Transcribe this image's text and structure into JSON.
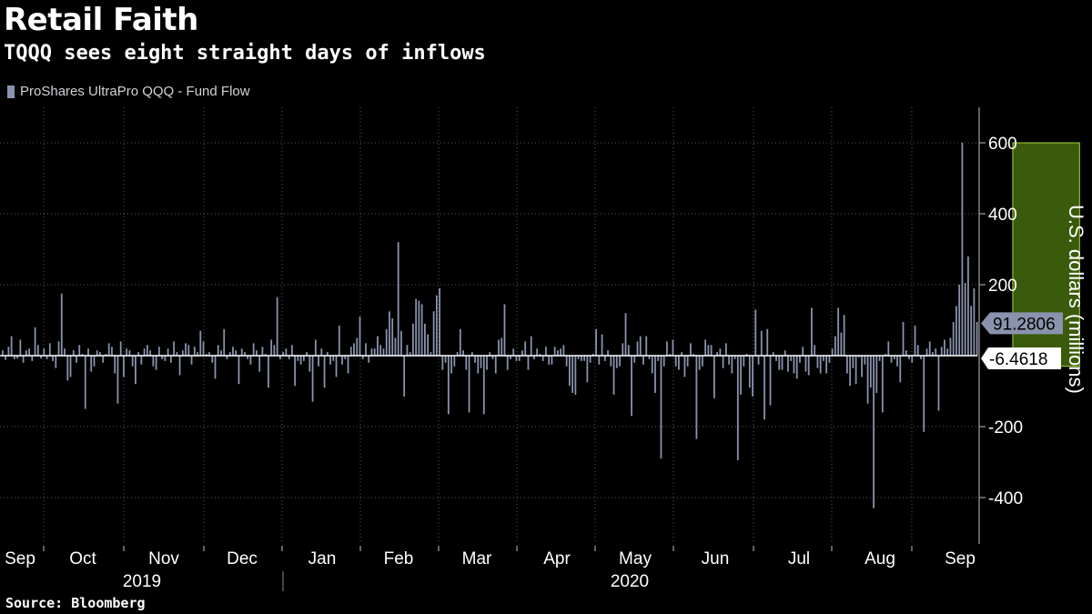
{
  "header": {
    "title": "Retail Faith",
    "subtitle": "TQQQ sees eight straight days of inflows"
  },
  "footer": {
    "source": "Source: Bloomberg"
  },
  "chart_data": {
    "type": "bar",
    "title": "Retail Faith",
    "subtitle": "TQQQ sees eight straight days of inflows",
    "ylabel": "U.S. dollars (millions)",
    "xlabel": "",
    "ylim": [
      -530,
      700
    ],
    "yticks": [
      -400,
      -200,
      200,
      400,
      600
    ],
    "ytick_labels": [
      "-400",
      "-200",
      "200",
      "400",
      "600"
    ],
    "grid": true,
    "legend_position": "top-left",
    "series": [
      {
        "name": "ProShares UltraPro QQQ - Fund Flow",
        "color": "#8a93ad",
        "values": [
          15,
          -12,
          25,
          55,
          -10,
          -8,
          45,
          -20,
          15,
          20,
          -15,
          80,
          30,
          -8,
          20,
          -10,
          35,
          -15,
          -35,
          40,
          175,
          20,
          -70,
          -60,
          15,
          -20,
          30,
          5,
          -150,
          20,
          -45,
          -30,
          15,
          10,
          -20,
          5,
          35,
          25,
          -50,
          -135,
          40,
          -60,
          20,
          15,
          -30,
          -80,
          10,
          -25,
          20,
          30,
          15,
          -30,
          -40,
          25,
          -10,
          -15,
          20,
          -20,
          40,
          10,
          -55,
          15,
          35,
          30,
          -25,
          25,
          10,
          70,
          40,
          5,
          10,
          -20,
          -65,
          30,
          15,
          75,
          -10,
          10,
          25,
          15,
          -80,
          20,
          10,
          -10,
          -25,
          35,
          15,
          -45,
          25,
          5,
          -90,
          45,
          30,
          165,
          -10,
          10,
          20,
          -10,
          30,
          -85,
          -15,
          -25,
          -15,
          10,
          -45,
          -130,
          45,
          -30,
          20,
          -90,
          10,
          -25,
          -15,
          -60,
          85,
          -25,
          -10,
          -50,
          25,
          35,
          50,
          110,
          -10,
          35,
          -20,
          20,
          20,
          55,
          30,
          20,
          75,
          125,
          105,
          50,
          320,
          70,
          -115,
          30,
          10,
          90,
          160,
          155,
          145,
          90,
          60,
          10,
          125,
          170,
          190,
          -40,
          -20,
          -165,
          -50,
          -30,
          10,
          75,
          15,
          -40,
          -160,
          10,
          -20,
          -50,
          -35,
          -165,
          -40,
          10,
          -10,
          -50,
          45,
          50,
          145,
          -40,
          -10,
          20,
          -15,
          -15,
          15,
          40,
          -40,
          55,
          -10,
          20,
          5,
          -15,
          25,
          -25,
          -25,
          25,
          15,
          20,
          30,
          -30,
          -85,
          -105,
          -110,
          -10,
          -15,
          -15,
          -75,
          -20,
          5,
          75,
          -25,
          60,
          -15,
          15,
          -30,
          -110,
          -35,
          -30,
          35,
          120,
          30,
          -170,
          -20,
          40,
          55,
          -25,
          55,
          -10,
          -50,
          -105,
          -15,
          -290,
          -30,
          40,
          5,
          45,
          -30,
          -40,
          10,
          -60,
          -30,
          35,
          5,
          -235,
          -40,
          -30,
          45,
          30,
          30,
          -120,
          10,
          20,
          -35,
          35,
          -25,
          -50,
          -10,
          -295,
          -110,
          -30,
          5,
          -90,
          -115,
          130,
          -25,
          70,
          -180,
          75,
          -140,
          10,
          -15,
          -40,
          -40,
          15,
          -45,
          -15,
          -50,
          -65,
          -20,
          25,
          -45,
          -55,
          135,
          30,
          -35,
          -50,
          -15,
          -50,
          -20,
          20,
          55,
          135,
          65,
          115,
          -50,
          -85,
          -35,
          -80,
          -5,
          -60,
          -25,
          -135,
          -90,
          -430,
          -105,
          -15,
          -160,
          5,
          40,
          -20,
          -10,
          -30,
          -75,
          95,
          15,
          -10,
          -20,
          85,
          30,
          -10,
          -215,
          20,
          40,
          10,
          20,
          -155,
          25,
          45,
          20,
          50,
          95,
          140,
          200,
          600,
          205,
          280,
          140,
          190,
          95
        ],
        "last_positive_value": 91.2806,
        "last_negative_value": -6.4618,
        "last_positive_label": "91.2806",
        "last_negative_label": "-6.4618"
      }
    ],
    "x_month_labels": [
      "Sep",
      "Oct",
      "Nov",
      "Dec",
      "Jan",
      "Feb",
      "Mar",
      "Apr",
      "May",
      "Jun",
      "Jul",
      "Aug",
      "Sep"
    ],
    "x_year_labels": [
      "2019",
      "2020"
    ],
    "highlight": {
      "description": "",
      "y_range": [
        -30,
        600
      ],
      "start_index": 343,
      "end_index": 365,
      "color": "#4d7a0f"
    }
  }
}
